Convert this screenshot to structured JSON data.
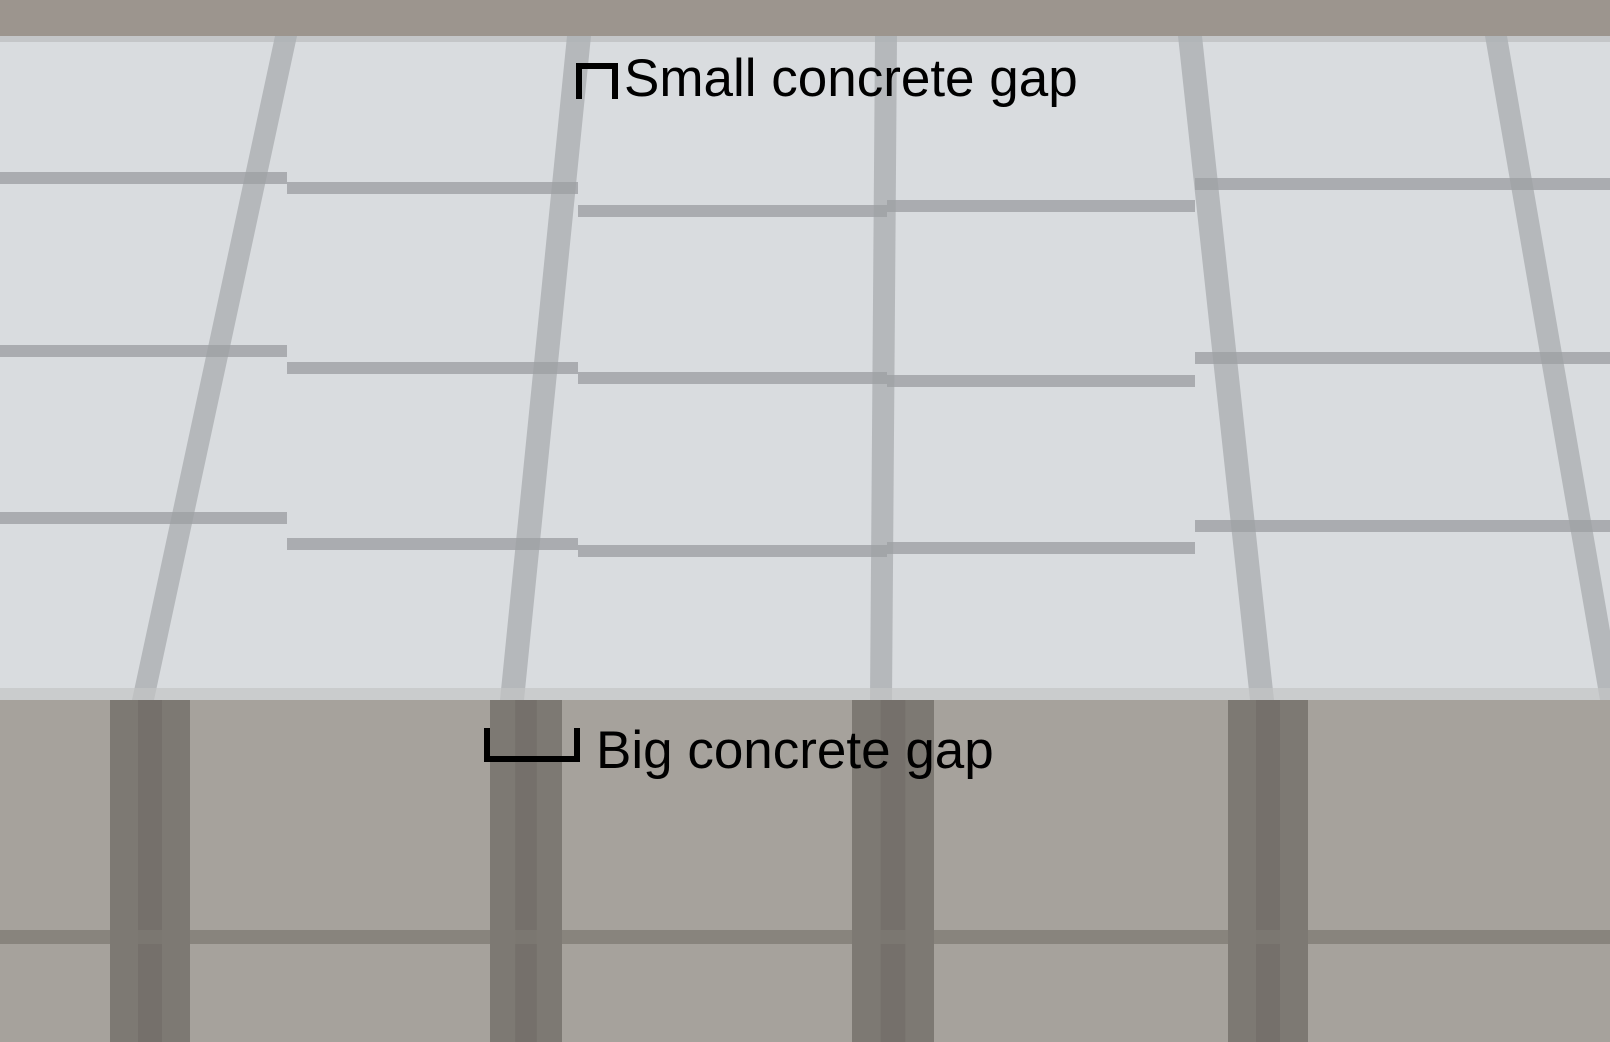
{
  "annotations": {
    "small_gap_label": "Small concrete gap",
    "big_gap_label": "Big concrete gap"
  },
  "colors": {
    "top_edge": "#9c958e",
    "sky_panel": "#d9dcdf",
    "sky_joint": "#aeb1b5",
    "sky_joint_dark": "#9da0a4",
    "shade_panel": "#a6a29c",
    "shade_joint": "#7d7973",
    "shade_joint_dark": "#6f6b66",
    "label_text": "#000000"
  }
}
